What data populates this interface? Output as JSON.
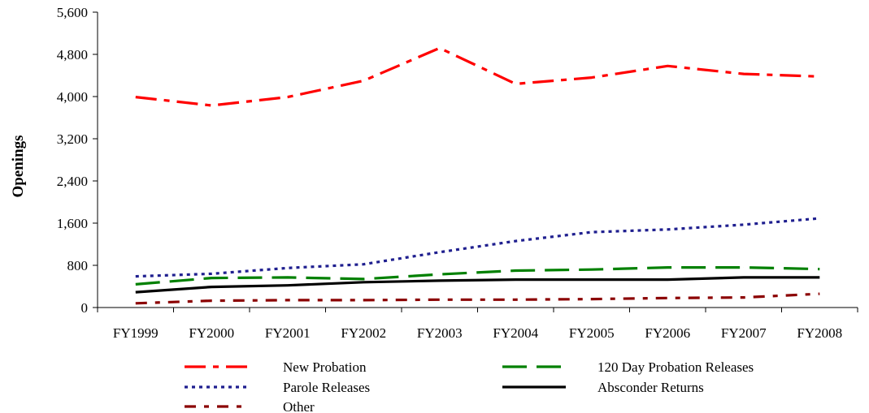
{
  "chart_data": {
    "type": "line",
    "title": "",
    "xlabel": "",
    "ylabel": "Openings",
    "ylim": [
      0,
      5600
    ],
    "yticks": [
      0,
      800,
      1600,
      2400,
      3200,
      4000,
      4800,
      5600
    ],
    "ytick_labels": [
      "0",
      "800",
      "1,600",
      "2,400",
      "3,200",
      "4,000",
      "4,800",
      "5,600"
    ],
    "categories": [
      "FY1999",
      "FY2000",
      "FY2001",
      "FY2002",
      "FY2003",
      "FY2004",
      "FY2005",
      "FY2006",
      "FY2007",
      "FY2008"
    ],
    "grid": false,
    "legend_position": "bottom",
    "series": [
      {
        "name": "New Probation",
        "color": "#ff0000",
        "dash": "long-dash-dot",
        "values": [
          3990,
          3830,
          3990,
          4300,
          4920,
          4240,
          4360,
          4580,
          4430,
          4380
        ]
      },
      {
        "name": "120 Day Probation Releases",
        "color": "#008000",
        "dash": "long-dash",
        "values": [
          440,
          560,
          570,
          540,
          630,
          700,
          720,
          760,
          760,
          730
        ]
      },
      {
        "name": "Parole Releases",
        "color": "#1f1f8f",
        "dash": "dot",
        "values": [
          590,
          640,
          750,
          820,
          1050,
          1260,
          1430,
          1480,
          1570,
          1690
        ]
      },
      {
        "name": "Absconder Returns",
        "color": "#000000",
        "dash": "solid",
        "values": [
          290,
          390,
          420,
          480,
          510,
          530,
          530,
          530,
          570,
          570
        ]
      },
      {
        "name": "Other",
        "color": "#8b0000",
        "dash": "dash-dot",
        "values": [
          80,
          130,
          140,
          140,
          150,
          150,
          160,
          180,
          190,
          260
        ]
      }
    ]
  }
}
